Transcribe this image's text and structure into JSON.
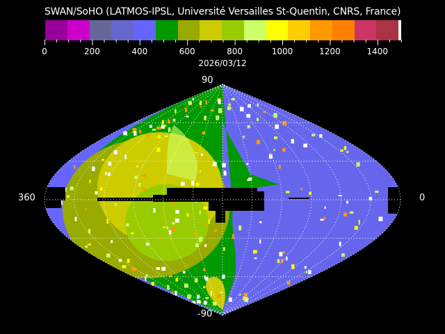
{
  "title": "SWAN/SoHO (LATMOS-IPSL, Université Versailles St-Quentin, CNRS, France)",
  "date": "2026/03/12",
  "colorbar": {
    "colors": [
      "#990099",
      "#cc00cc",
      "#666699",
      "#6666cc",
      "#6666ff",
      "#009900",
      "#99aa00",
      "#cccc00",
      "#99cc00",
      "#ccff66",
      "#ffff00",
      "#ffcc00",
      "#ff9900",
      "#ff7f00",
      "#cc3366",
      "#aa3344"
    ],
    "end_color": "#ffffff",
    "range": [
      0,
      1500
    ],
    "tick_labels": [
      "0",
      "200",
      "400",
      "600",
      "800",
      "1000",
      "1200",
      "1400"
    ],
    "tick_values": [
      0,
      200,
      400,
      600,
      800,
      1000,
      1200,
      1400
    ]
  },
  "map": {
    "projection": "sinusoidal",
    "label_top": "90",
    "label_bottom": "-90",
    "label_left": "360",
    "label_right": "0",
    "colors": {
      "blue": "#6666ff",
      "grayblue": "#6666cc",
      "green": "#009900",
      "olive": "#99aa00",
      "yellow": "#cccc00",
      "lime": "#99cc00",
      "pale": "#ccff66",
      "white": "#ffffff",
      "black": "#000000"
    }
  }
}
